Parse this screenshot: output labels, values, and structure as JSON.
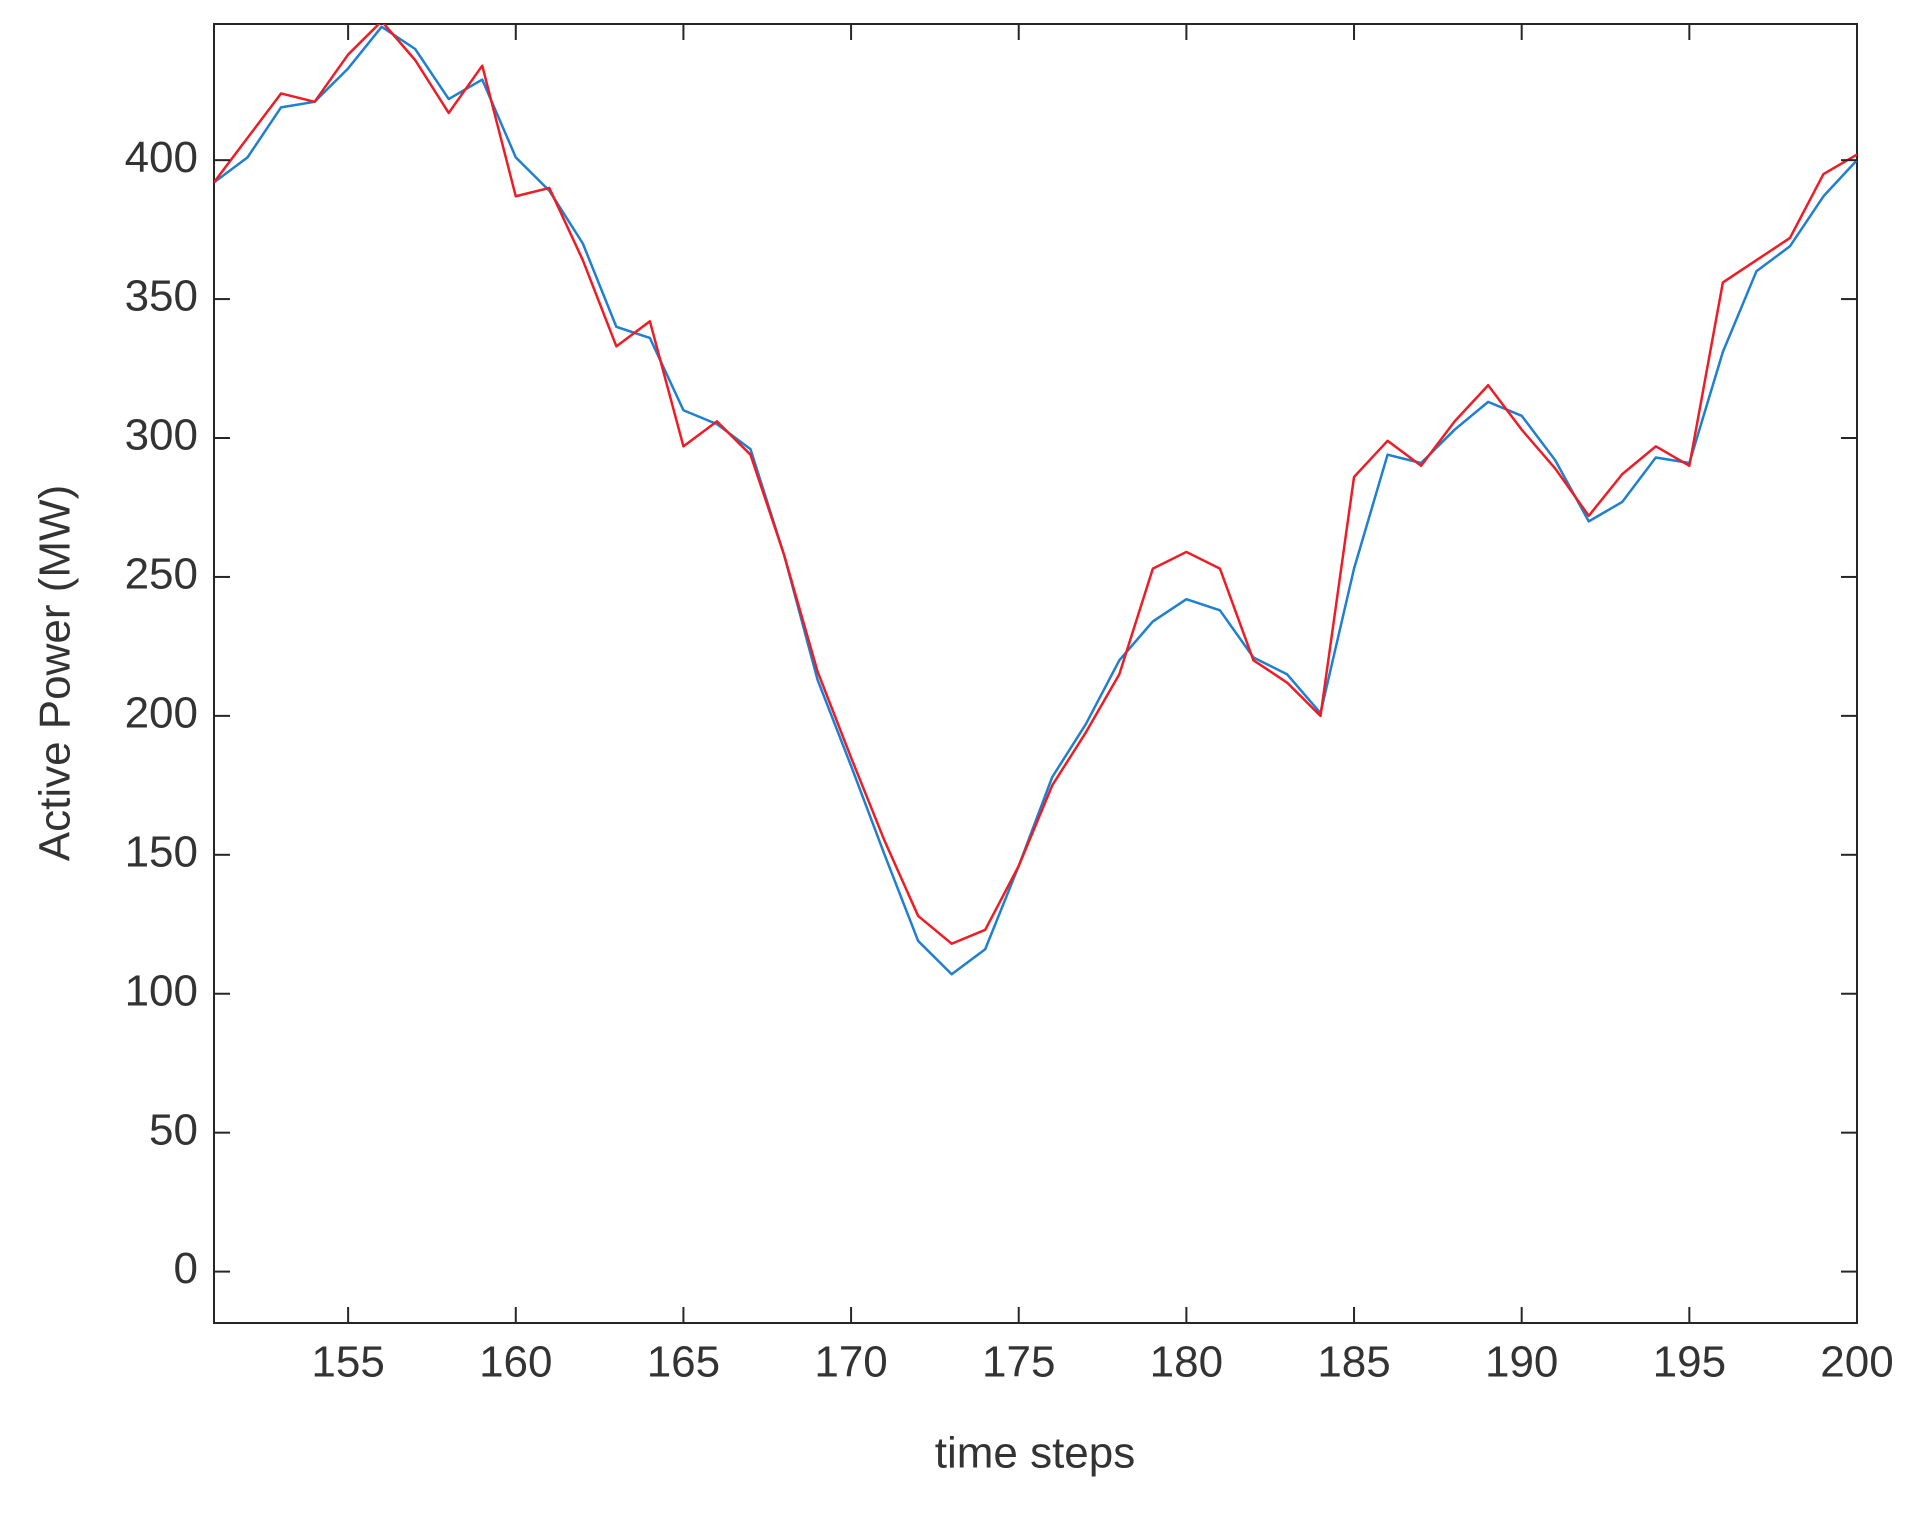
{
  "chart_data": {
    "type": "line",
    "xlabel": "time steps",
    "ylabel": "Active Power  (MW)",
    "x": [
      151,
      152,
      153,
      154,
      155,
      156,
      157,
      158,
      159,
      160,
      161,
      162,
      163,
      164,
      165,
      166,
      167,
      168,
      169,
      170,
      171,
      172,
      173,
      174,
      175,
      176,
      177,
      178,
      179,
      180,
      181,
      182,
      183,
      184,
      185,
      186,
      187,
      188,
      189,
      190,
      191,
      192,
      193,
      194,
      195,
      196,
      197,
      198,
      199,
      200
    ],
    "series": [
      {
        "color": "#1f7fd0",
        "values": [
          392,
          401,
          419,
          421,
          433,
          448,
          440,
          422,
          429,
          401,
          389,
          370,
          340,
          336,
          310,
          305,
          296,
          258,
          213,
          182,
          150,
          119,
          107,
          116,
          146,
          178,
          197,
          220,
          234,
          242,
          238,
          221,
          215,
          201,
          253,
          294,
          291,
          303,
          313,
          308,
          292,
          270,
          277,
          293,
          291,
          331,
          360,
          369,
          387,
          400
        ]
      },
      {
        "color": "#ee1c25",
        "values": [
          392,
          408,
          424,
          421,
          438,
          450,
          436,
          417,
          434,
          387,
          390,
          364,
          333,
          342,
          297,
          306,
          294,
          258,
          216,
          185,
          155,
          128,
          118,
          123,
          146,
          175,
          194,
          215,
          253,
          259,
          253,
          220,
          212,
          200,
          286,
          299,
          290,
          306,
          319,
          303,
          289,
          272,
          287,
          297,
          290,
          356,
          364,
          372,
          395,
          402
        ]
      }
    ],
    "xlim": [
      151,
      200
    ],
    "xticks": [
      155,
      160,
      165,
      170,
      175,
      180,
      185,
      190,
      195,
      200
    ],
    "ylim": [
      -18.5,
      449
    ],
    "yticks": [
      0,
      50,
      100,
      150,
      200,
      250,
      300,
      350,
      400
    ]
  }
}
